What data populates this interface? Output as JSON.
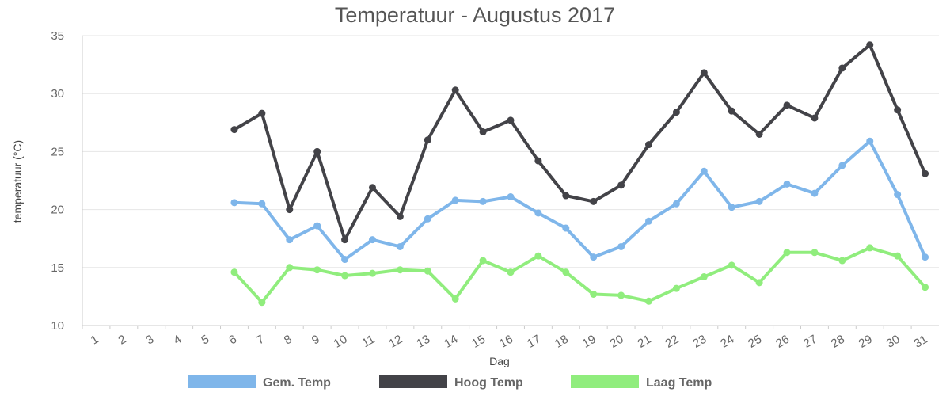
{
  "chart_data": {
    "type": "line",
    "title": "Temperatuur - Augustus 2017",
    "xlabel": "Dag",
    "ylabel": "temperatuur (°C)",
    "ylim": [
      10,
      35
    ],
    "yticks": [
      "10",
      "15",
      "20",
      "25",
      "30",
      "35"
    ],
    "grid": true,
    "legend_position": "bottom",
    "categories": [
      "1",
      "2",
      "3",
      "4",
      "5",
      "6",
      "7",
      "8",
      "9",
      "10",
      "11",
      "12",
      "13",
      "14",
      "15",
      "16",
      "17",
      "18",
      "19",
      "20",
      "21",
      "22",
      "23",
      "24",
      "25",
      "26",
      "27",
      "28",
      "29",
      "30",
      "31"
    ],
    "series": [
      {
        "name": "Gem. Temp",
        "color": "#7fb6ea",
        "values": [
          null,
          null,
          null,
          null,
          null,
          20.6,
          20.5,
          17.4,
          18.6,
          15.7,
          17.4,
          16.8,
          19.2,
          20.8,
          20.7,
          21.1,
          19.7,
          18.4,
          15.9,
          16.8,
          19.0,
          20.5,
          23.3,
          20.2,
          20.7,
          22.2,
          21.4,
          23.8,
          25.9,
          21.3,
          15.9
        ]
      },
      {
        "name": "Hoog Temp",
        "color": "#434348",
        "values": [
          null,
          null,
          null,
          null,
          null,
          26.9,
          28.3,
          20.0,
          25.0,
          17.4,
          21.9,
          19.4,
          26.0,
          30.3,
          26.7,
          27.7,
          24.2,
          21.2,
          20.7,
          22.1,
          25.6,
          28.4,
          31.8,
          28.5,
          26.5,
          29.0,
          27.9,
          32.2,
          34.2,
          28.6,
          23.1
        ]
      },
      {
        "name": "Laag Temp",
        "color": "#90ed7d",
        "values": [
          null,
          null,
          null,
          null,
          null,
          14.6,
          12.0,
          15.0,
          14.8,
          14.3,
          14.5,
          14.8,
          14.7,
          12.3,
          15.6,
          14.6,
          16.0,
          14.6,
          12.7,
          12.6,
          12.1,
          13.2,
          14.2,
          15.2,
          13.7,
          16.3,
          16.3,
          15.6,
          16.7,
          16.0,
          13.3
        ]
      }
    ]
  }
}
